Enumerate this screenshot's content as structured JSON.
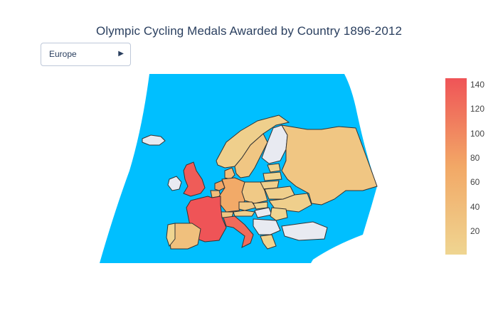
{
  "title": "Olympic Cycling Medals Awarded by Country 1896-2012",
  "dropdown": {
    "selected": "Europe",
    "arrow_icon": "triangle-right-icon"
  },
  "colors": {
    "ocean": "#00bfff",
    "no_data": "#e8eaf1",
    "scale_low": "#efd591",
    "scale_mid": "#f2a866",
    "scale_high": "#ef5457",
    "border": "#333333"
  },
  "colorbar": {
    "min": 1,
    "max": 145,
    "ticks": [
      "20",
      "40",
      "60",
      "80",
      "100",
      "120",
      "140"
    ]
  },
  "chart_data": {
    "type": "choropleth",
    "scope": "Europe",
    "projection": "conic",
    "value_label": "medals",
    "countries": [
      {
        "name": "United Kingdom",
        "value": 138
      },
      {
        "name": "France",
        "value": 145
      },
      {
        "name": "Italy",
        "value": 125
      },
      {
        "name": "Germany",
        "value": 70
      },
      {
        "name": "Netherlands",
        "value": 75
      },
      {
        "name": "Belgium",
        "value": 40
      },
      {
        "name": "Spain",
        "value": 35
      },
      {
        "name": "Denmark",
        "value": 40
      },
      {
        "name": "Russia",
        "value": 25
      },
      {
        "name": "Poland",
        "value": 20
      },
      {
        "name": "Sweden",
        "value": 25
      },
      {
        "name": "Norway",
        "value": 10
      },
      {
        "name": "Switzerland",
        "value": 25
      },
      {
        "name": "Austria",
        "value": 10
      },
      {
        "name": "Ukraine",
        "value": 10
      },
      {
        "name": "Belarus",
        "value": 10
      },
      {
        "name": "Czech Republic",
        "value": 20
      },
      {
        "name": "Lithuania",
        "value": 10
      },
      {
        "name": "Latvia",
        "value": 5
      },
      {
        "name": "Estonia",
        "value": 5
      },
      {
        "name": "Greece",
        "value": 5
      },
      {
        "name": "Portugal",
        "value": 1
      },
      {
        "name": "Slovakia",
        "value": 1
      },
      {
        "name": "Romania",
        "value": 1
      }
    ]
  }
}
